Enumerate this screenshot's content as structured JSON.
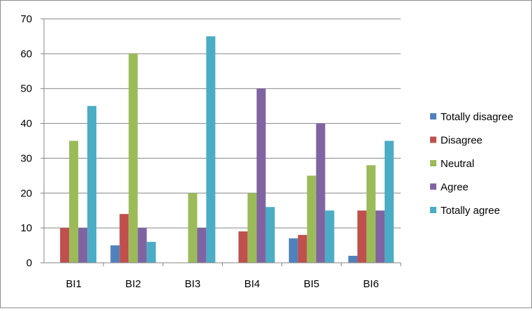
{
  "chart_data": {
    "type": "bar",
    "title": "",
    "xlabel": "",
    "ylabel": "",
    "ylim": [
      0,
      70
    ],
    "yticks": [
      0,
      10,
      20,
      30,
      40,
      50,
      60,
      70
    ],
    "grid": true,
    "legend_position": "right",
    "categories": [
      "BI1",
      "BI2",
      "BI3",
      "BI4",
      "BI5",
      "BI6"
    ],
    "series": [
      {
        "name": "Totally disagree",
        "color": "#4f81bd",
        "values": [
          0,
          5,
          0,
          0,
          7,
          2
        ]
      },
      {
        "name": "Disagree",
        "color": "#c0504d",
        "values": [
          10,
          14,
          0,
          9,
          8,
          15
        ]
      },
      {
        "name": "Neutral",
        "color": "#9bbb59",
        "values": [
          35,
          60,
          20,
          20,
          25,
          28
        ]
      },
      {
        "name": "Agree",
        "color": "#8064a2",
        "values": [
          10,
          10,
          10,
          50,
          40,
          15
        ]
      },
      {
        "name": "Totally agree",
        "color": "#4bacc6",
        "values": [
          45,
          6,
          65,
          16,
          15,
          35
        ]
      }
    ]
  }
}
